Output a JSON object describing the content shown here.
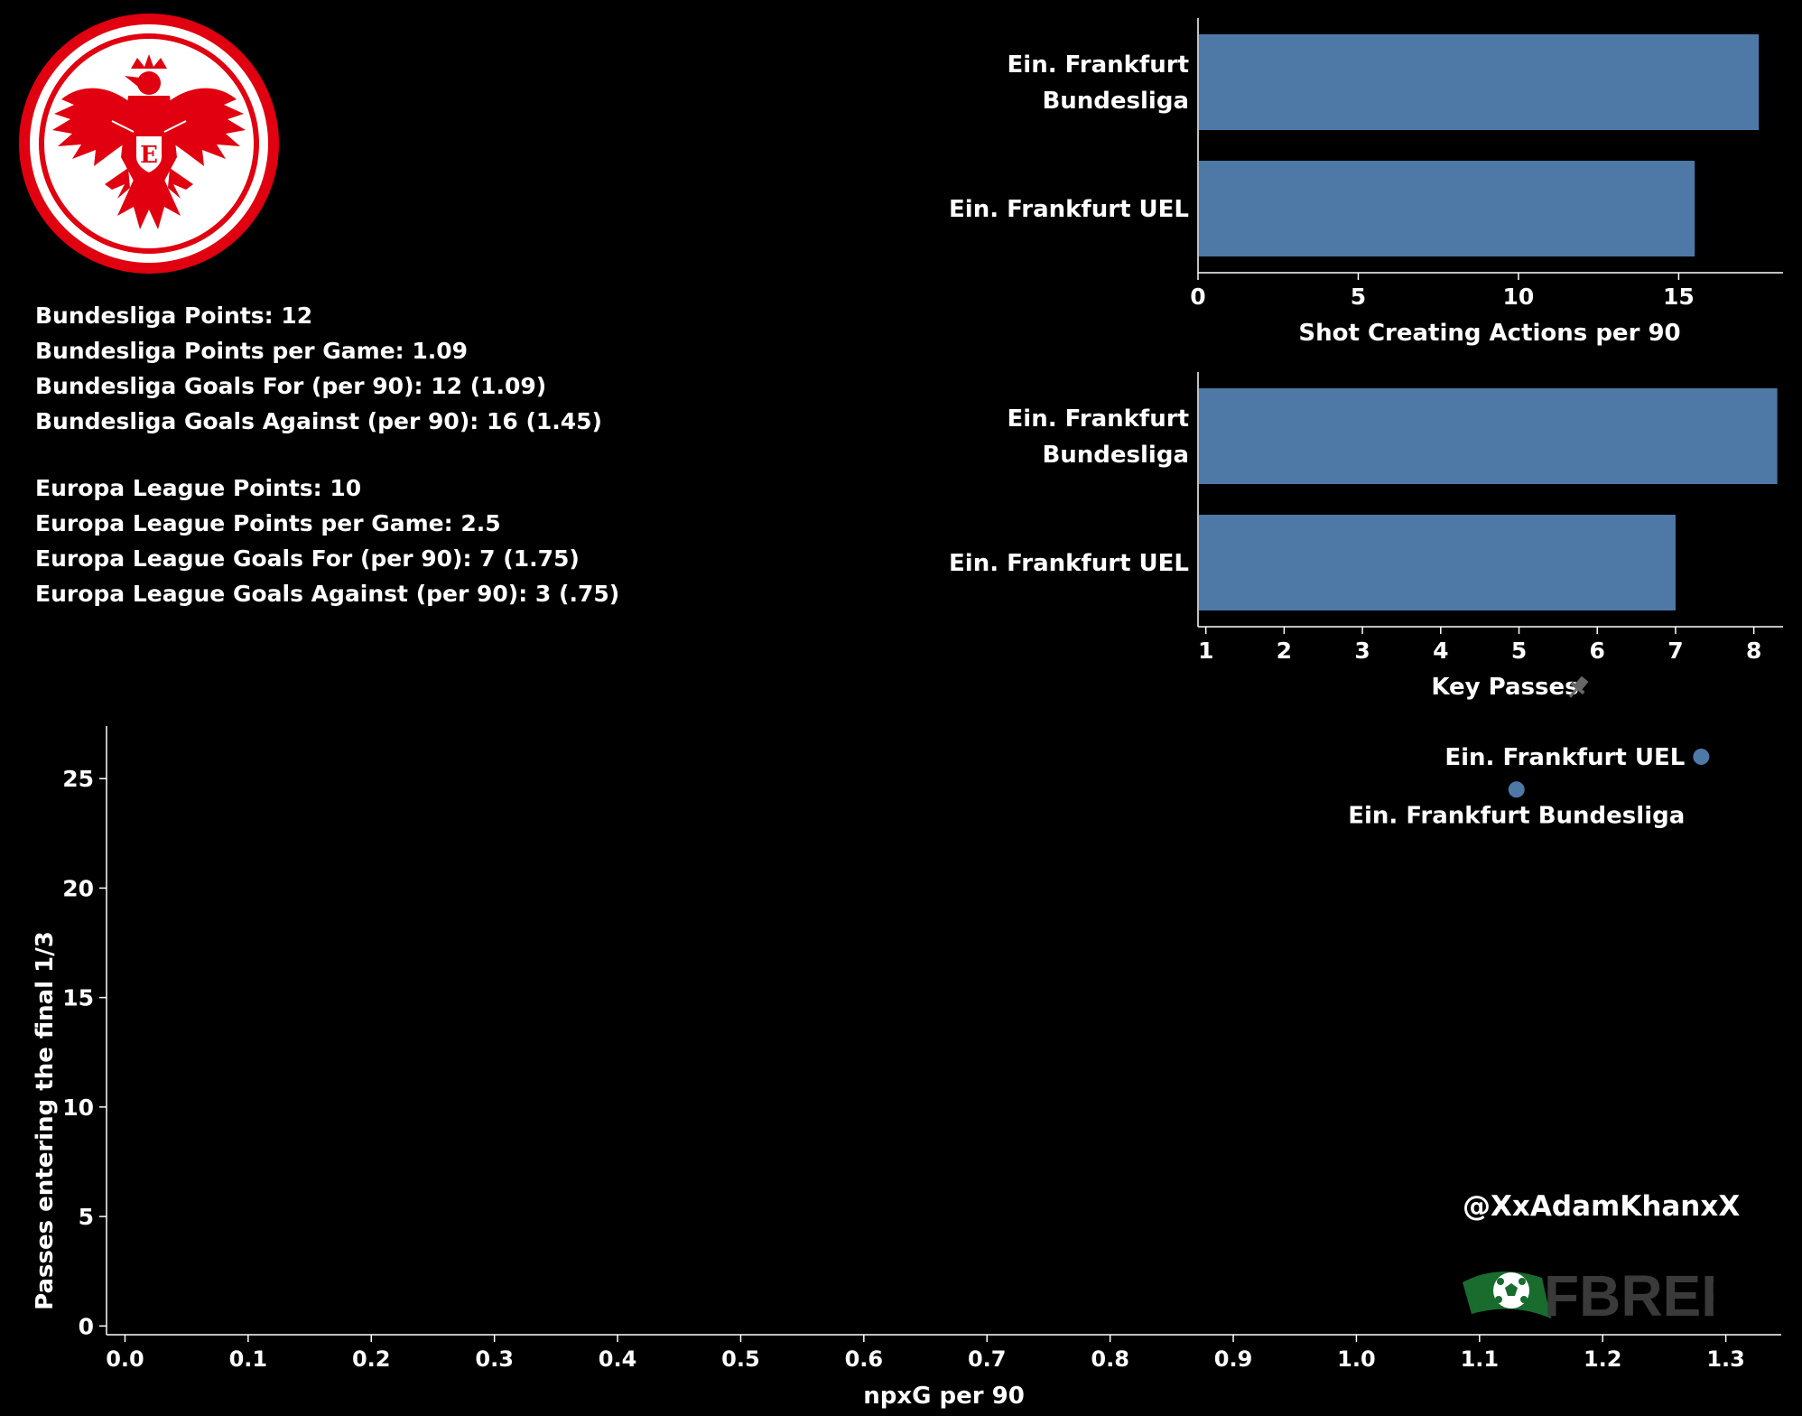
{
  "stats": {
    "bundesliga": [
      "Bundesliga Points: 12",
      "Bundesliga Points per Game: 1.09",
      "Bundesliga Goals For (per 90): 12 (1.09)",
      "Bundesliga Goals Against (per 90): 16 (1.45)"
    ],
    "europa": [
      "Europa League Points: 10",
      "Europa League Points per Game: 2.5",
      "Europa League Goals For (per 90): 7 (1.75)",
      "Europa League Goals Against (per 90): 3 (.75)"
    ]
  },
  "watermark": "@XxAdamKhanxX",
  "fbref_logo": {
    "text": "FBREF"
  },
  "logo": {
    "name": "eintracht-frankfurt-crest",
    "letter": "E",
    "colors": {
      "red": "#e1000f",
      "white": "#ffffff"
    }
  },
  "colors": {
    "bar": "#4e79a7",
    "background": "#000000",
    "text": "#ffffff"
  },
  "chart_data": [
    {
      "type": "bar",
      "orientation": "horizontal",
      "categories": [
        [
          "Ein. Frankfurt",
          "Bundesliga"
        ],
        [
          "Ein. Frankfurt UEL"
        ]
      ],
      "values": [
        17.5,
        15.5
      ],
      "xlabel": "Shot Creating Actions per 90",
      "xticks": [
        0,
        5,
        10,
        15
      ],
      "xlim": [
        0,
        18.2
      ]
    },
    {
      "type": "bar",
      "orientation": "horizontal",
      "categories": [
        [
          "Ein. Frankfurt",
          "Bundesliga"
        ],
        [
          "Ein. Frankfurt UEL"
        ]
      ],
      "values": [
        8.3,
        7.0
      ],
      "xlabel": "Key Passes",
      "xticks": [
        1,
        2,
        3,
        4,
        5,
        6,
        7,
        8
      ],
      "xlim": [
        0.9,
        8.35
      ]
    },
    {
      "type": "scatter",
      "points": [
        {
          "label": "Ein. Frankfurt UEL",
          "x": 1.28,
          "y": 26.0
        },
        {
          "label": "Ein. Frankfurt Bundesliga",
          "x": 1.13,
          "y": 24.5
        }
      ],
      "xlabel": "npxG per 90",
      "ylabel": "Passes entering the final 1/3",
      "xticks": [
        0.0,
        0.1,
        0.2,
        0.3,
        0.4,
        0.5,
        0.6,
        0.7,
        0.8,
        0.9,
        1.0,
        1.1,
        1.2,
        1.3
      ],
      "yticks": [
        0,
        5,
        10,
        15,
        20,
        25
      ],
      "xlim": [
        -0.015,
        1.345
      ],
      "ylim": [
        -0.4,
        27.4
      ]
    }
  ]
}
